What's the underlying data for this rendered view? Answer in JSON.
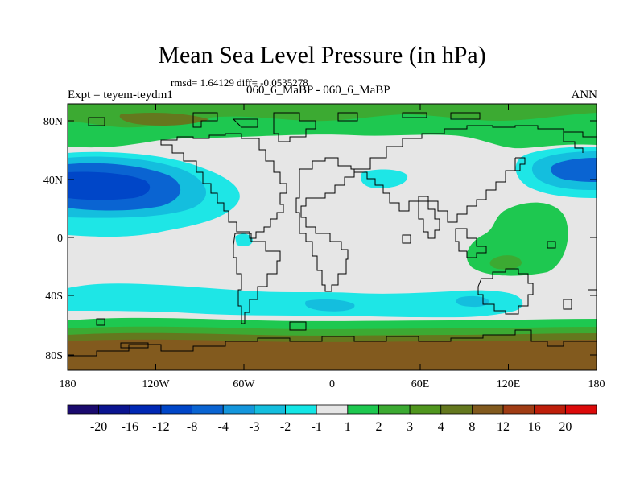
{
  "title": "Mean Sea Level Pressure (in hPa)",
  "stats": "rmsd= 1.64129 diff= -0.0535278",
  "experiment": "Expt = teyem-teydm1",
  "subtitle": "060_6_MaBP - 060_6_MaBP",
  "season": "ANN",
  "axes": {
    "x_ticks": [
      "180",
      "120W",
      "60W",
      "0",
      "60E",
      "120E",
      "180"
    ],
    "y_ticks": [
      "80N",
      "40N",
      "0",
      "40S",
      "80S"
    ]
  },
  "colorbar": {
    "labels": [
      "-20",
      "-16",
      "-12",
      "-8",
      "-4",
      "-3",
      "-2",
      "-1",
      "1",
      "2",
      "3",
      "4",
      "8",
      "12",
      "16",
      "20"
    ],
    "colors": [
      "#1a0a6e",
      "#0a1490",
      "#0028b4",
      "#0046c8",
      "#0a64d2",
      "#1496dc",
      "#14bede",
      "#14e6e6",
      "#e6e6e6",
      "#1ec850",
      "#3caa32",
      "#50961e",
      "#64781e",
      "#825a1e",
      "#a03c14",
      "#be1e0a",
      "#dc0a0a"
    ]
  },
  "colors": {
    "neutral": "#e6e6e6",
    "light_cyan": "#1ee6e6",
    "cyan": "#14bede",
    "blue": "#0a64d2",
    "deep_blue": "#0046c8",
    "green": "#1ec850",
    "mid_green": "#3caa32",
    "olive": "#64781e",
    "brown": "#825a1e"
  }
}
